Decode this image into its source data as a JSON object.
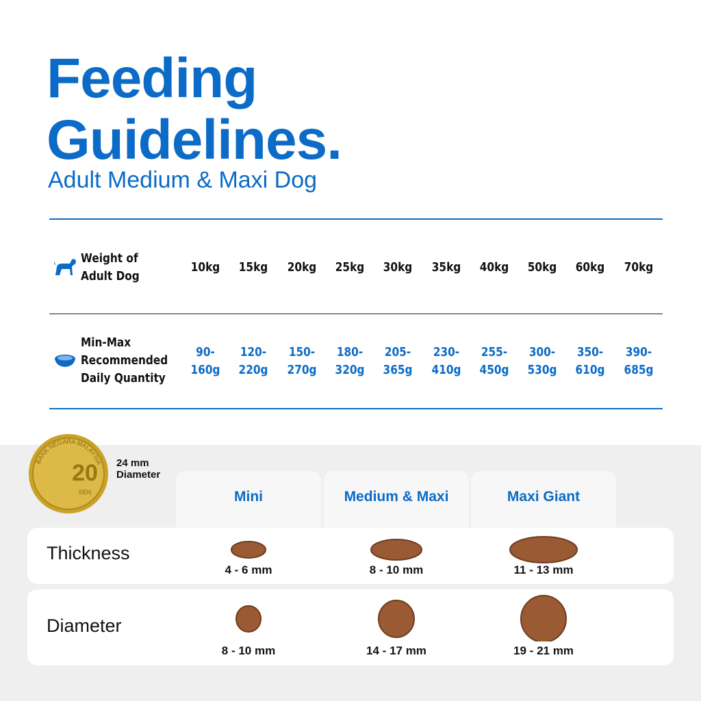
{
  "header": {
    "title_line1": "Feeding",
    "title_line2": "Guidelines.",
    "subtitle": "Adult Medium & Maxi Dog"
  },
  "table": {
    "weight_label": "Weight of Adult Dog",
    "weights": [
      "10kg",
      "15kg",
      "20kg",
      "25kg",
      "30kg",
      "35kg",
      "40kg",
      "50kg",
      "60kg",
      "70kg"
    ],
    "quantity_label": "Min-Max Recommended Daily Quantity",
    "quantities": [
      "90-160g",
      "120-220g",
      "150-270g",
      "180-320g",
      "205-365g",
      "230-410g",
      "255-450g",
      "300-530g",
      "350-610g",
      "390-685g"
    ]
  },
  "coin": {
    "value": "20",
    "unit": "SEN",
    "ring_text": "BANK NEGARA MALAYSIA",
    "caption": "24 mm Diameter"
  },
  "kibble": {
    "sizes": [
      "Mini",
      "Medium & Maxi",
      "Maxi Giant"
    ],
    "rows": [
      {
        "label": "Thickness",
        "values": [
          "4 - 6 mm",
          "8 - 10 mm",
          "11 - 13 mm"
        ]
      },
      {
        "label": "Diameter",
        "values": [
          "8 - 10 mm",
          "14 - 17 mm",
          "19 - 21 mm"
        ]
      }
    ]
  }
}
